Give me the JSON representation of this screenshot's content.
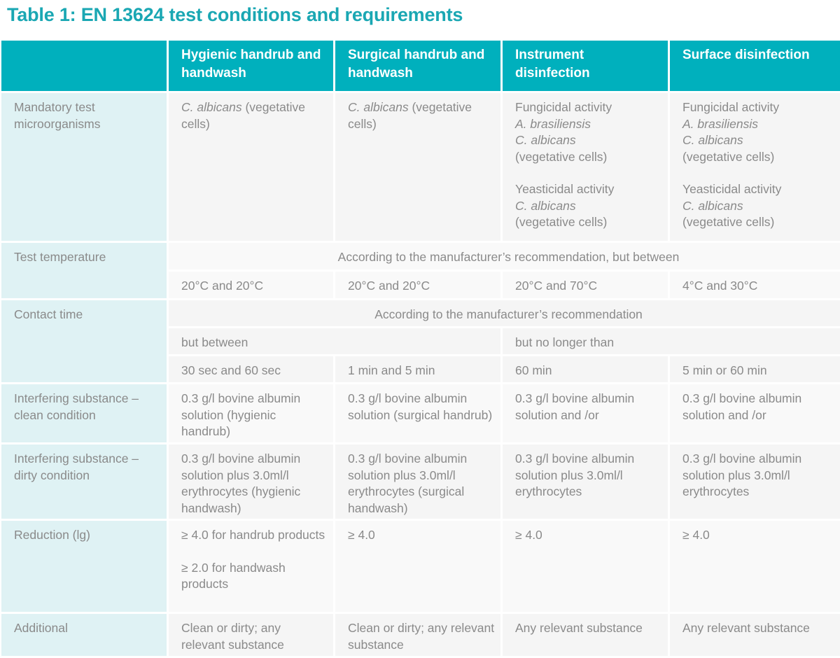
{
  "title": "Table 1: EN 13624 test conditions and requirements",
  "headers": [
    "",
    "Hygienic handrub and handwash",
    "Surgical handrub and handwash",
    "Instrument disinfection",
    "Surface disinfection"
  ],
  "rows": {
    "mandatory": {
      "label": "Mandatory test microorganisms",
      "hygienic": {
        "italic": "C. albicans",
        "rest": " (vegetative cells)"
      },
      "surgical": {
        "italic": "C. albicans",
        "rest": " (vegetative cells)"
      },
      "instrument": {
        "fungicidal": "Fungicidal activity",
        "org1": "A. brasiliensis",
        "org2": "C. albicans",
        "veg1": "(vegetative cells)",
        "yeasticidal": "Yeasticidal activity",
        "org3": "C. albicans",
        "veg2": "(vegetative cells)"
      },
      "surface": {
        "fungicidal": "Fungicidal activity",
        "org1": "A. brasiliensis",
        "org2": "C. albicans",
        "veg1": "(vegetative cells)",
        "yeasticidal": "Yeasticidal activity",
        "org3": "C. albicans",
        "veg2": "(vegetative cells)"
      }
    },
    "temperature": {
      "label": "Test temperature",
      "span": "According to the manufacturer’s recommendation, but between",
      "values": [
        "20°C and 20°C",
        "20°C and 20°C",
        "20°C and 70°C",
        "4°C and 30°C"
      ]
    },
    "contact": {
      "label": "Contact time",
      "span": "According to the manufacturer’s recommendation",
      "between": "but between",
      "no_longer": "but no longer than",
      "values": [
        "30 sec and 60 sec",
        "1 min and 5 min",
        "60 min",
        "5 min or 60 min"
      ]
    },
    "clean": {
      "label": "Interfering substance – clean condition",
      "values": [
        "0.3 g/l bovine albumin solution (hygienic handrub)",
        "0.3 g/l bovine albumin solution (surgical handrub)",
        "0.3 g/l bovine albumin solution and /or",
        "0.3 g/l bovine albumin solution and /or"
      ]
    },
    "dirty": {
      "label": "Interfering substance – dirty condition",
      "values": [
        "0.3 g/l bovine albumin solution plus 3.0ml/l erythrocytes (hygienic handwash)",
        "0.3 g/l bovine albumin solution plus 3.0ml/l erythrocytes (surgical handwash)",
        "0.3 g/l bovine albumin solution plus 3.0ml/l erythrocytes",
        "0.3 g/l bovine albumin solution plus 3.0ml/l erythrocytes"
      ]
    },
    "reduction": {
      "label": "Reduction (lg)",
      "hygienic_1": "≥ 4.0 for handrub products",
      "hygienic_2": "≥ 2.0 for handwash products",
      "values": [
        "≥ 4.0",
        "≥ 4.0",
        "≥ 4.0"
      ]
    },
    "additional": {
      "label": "Additional",
      "values": [
        "Clean or dirty; any relevant substance",
        "Clean or dirty; any relevant substance",
        "Any relevant substance",
        "Any relevant substance"
      ]
    }
  }
}
